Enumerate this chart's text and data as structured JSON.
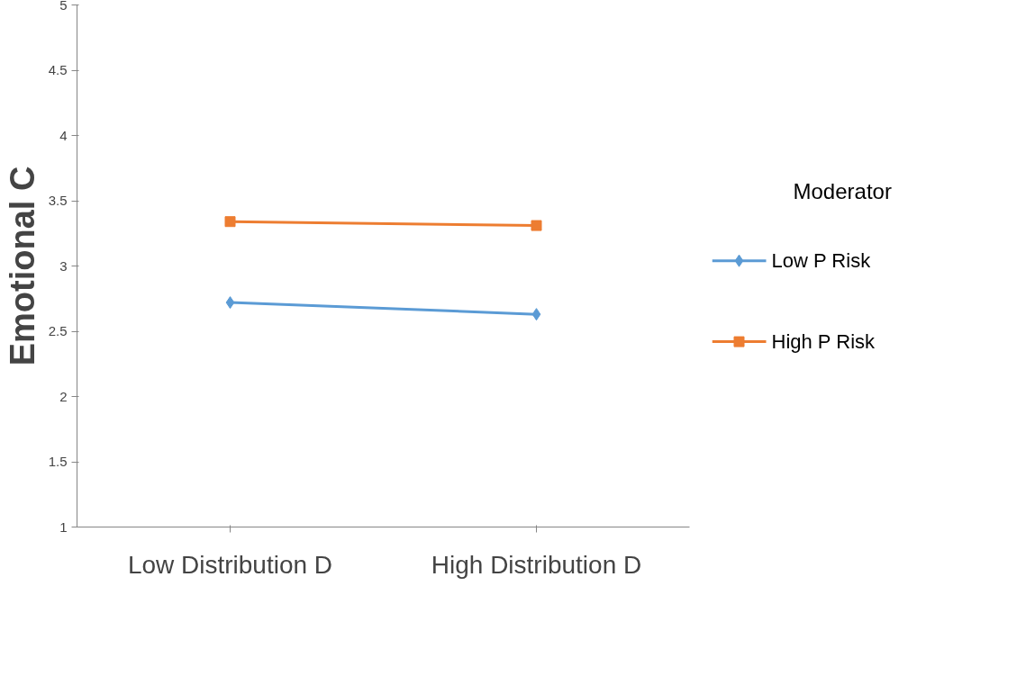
{
  "chart_data": {
    "type": "line",
    "ylabel": "Emotional C",
    "legend_title": "Moderator",
    "categories": [
      "Low Distribution D",
      "High Distribution D"
    ],
    "series": [
      {
        "name": "Low P Risk",
        "color": "#5b9bd5",
        "values": [
          2.72,
          2.63
        ],
        "marker": "diamond"
      },
      {
        "name": "High P Risk",
        "color": "#ed7d31",
        "values": [
          3.34,
          3.31
        ],
        "marker": "square"
      }
    ],
    "ylim": [
      1,
      5
    ],
    "yticks": [
      1,
      1.5,
      2,
      2.5,
      3,
      3.5,
      4,
      4.5,
      5
    ],
    "grid": false,
    "legend": "right"
  }
}
